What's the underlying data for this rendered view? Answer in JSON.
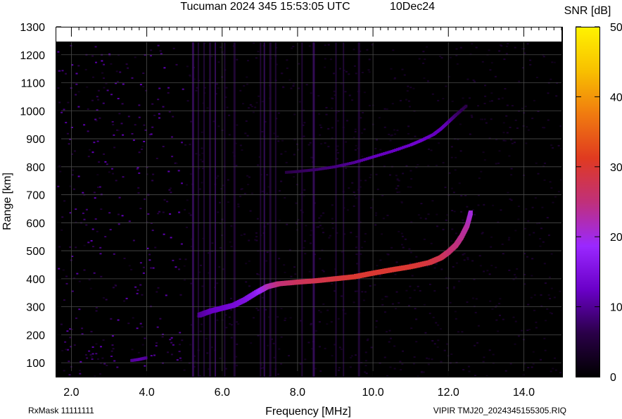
{
  "header": {
    "title": "Tucuman 2024 345 15:53:05 UTC",
    "date": "10Dec24"
  },
  "colors": {
    "background": "#000000",
    "grid": "#4a4a4a",
    "frame": "#000000",
    "trace_low": "#8a1cff",
    "trace_high": "#e2461e",
    "noise": "#3a0a55"
  },
  "chart_data": {
    "type": "heatmap",
    "title": "Tucuman 2024 345 15:53:05 UTC",
    "xlabel": "Frequency [MHz]",
    "ylabel": "Range [km]",
    "xlim": [
      1.6,
      15.0
    ],
    "ylim": [
      50,
      1300
    ],
    "data_ylim": [
      50,
      1245
    ],
    "x_ticks": [
      2.0,
      4.0,
      6.0,
      8.0,
      10.0,
      12.0,
      14.0
    ],
    "x_tick_labels": [
      "2.0",
      "4.0",
      "6.0",
      "8.0",
      "10.0",
      "12.0",
      "14.0"
    ],
    "y_ticks": [
      100,
      200,
      300,
      400,
      500,
      600,
      700,
      800,
      900,
      1000,
      1100,
      1200,
      1300
    ],
    "y_tick_labels": [
      "100",
      "200",
      "300",
      "400",
      "500",
      "600",
      "700",
      "800",
      "900",
      "1000",
      "1100",
      "1200",
      "1300"
    ],
    "grid": true,
    "colorbar": {
      "label": "SNR [dB]",
      "min": 0,
      "max": 50,
      "ticks": [
        0,
        10,
        20,
        30,
        40,
        50
      ],
      "tick_labels": [
        "0",
        "10",
        "20",
        "30",
        "40",
        "50"
      ],
      "stops": [
        "#000000",
        "#2a0048",
        "#6a00c8",
        "#9a28ff",
        "#c0307a",
        "#e03a20",
        "#f07a10",
        "#f8c000",
        "#fff200"
      ]
    },
    "series": [
      {
        "x": [
          5.4,
          5.7,
          6.0,
          6.3,
          6.6,
          6.9,
          7.2,
          7.5,
          8.0,
          8.5,
          9.0,
          9.5,
          10.0,
          10.5,
          11.0,
          11.5,
          11.8,
          12.0,
          12.2,
          12.35,
          12.5,
          12.6
        ],
        "y": [
          270,
          285,
          295,
          305,
          325,
          350,
          372,
          382,
          388,
          393,
          400,
          407,
          420,
          432,
          443,
          458,
          475,
          495,
          520,
          550,
          590,
          640
        ],
        "snr": [
          10,
          12,
          13,
          14,
          15,
          17,
          22,
          25,
          27,
          28,
          29,
          30,
          30,
          30,
          30,
          29,
          28,
          26,
          25,
          24,
          23,
          20
        ]
      },
      {
        "x": [
          7.7,
          8.0,
          8.5,
          9.0,
          9.5,
          10.0,
          10.5,
          11.0,
          11.3,
          11.6,
          11.8,
          12.0,
          12.2,
          12.5
        ],
        "y": [
          780,
          783,
          790,
          800,
          815,
          835,
          855,
          878,
          895,
          915,
          935,
          960,
          985,
          1020
        ],
        "snr": [
          6,
          7,
          8,
          9,
          10,
          12,
          12,
          13,
          13,
          12,
          12,
          11,
          8,
          6
        ]
      },
      {
        "x": [
          3.6,
          3.8,
          4.0
        ],
        "y": [
          108,
          112,
          118
        ],
        "snr": [
          10,
          11,
          10
        ]
      }
    ]
  },
  "footer": {
    "rxmask": "RxMask 11111111",
    "file": "VIPIR  TMJ20_2024345155305.RIQ"
  }
}
